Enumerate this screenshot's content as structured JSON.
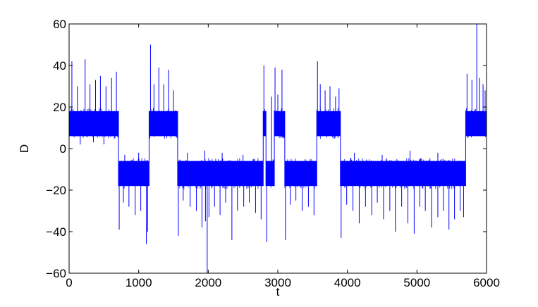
{
  "chart_data": {
    "type": "line",
    "title": "",
    "xlabel": "t",
    "ylabel": "D",
    "xlim": [
      0,
      6000
    ],
    "ylim": [
      -60,
      60
    ],
    "xticks": [
      0,
      1000,
      2000,
      3000,
      4000,
      5000,
      6000
    ],
    "xtick_labels": [
      "0",
      "1000",
      "2000",
      "3000",
      "4000",
      "5000",
      "6000"
    ],
    "yticks": [
      -60,
      -40,
      -20,
      0,
      20,
      40,
      60
    ],
    "ytick_labels": [
      "−60",
      "−40",
      "−20",
      "0",
      "20",
      "40",
      "60"
    ],
    "grid": false,
    "color": "#0000ff",
    "series": [
      {
        "segments": [
          {
            "t_start": 0,
            "t_end": 710,
            "band": [
              6,
              18
            ]
          },
          {
            "t_start": 710,
            "t_end": 1150,
            "band": [
              -18,
              -6
            ]
          },
          {
            "t_start": 1150,
            "t_end": 1560,
            "band": [
              6,
              18
            ]
          },
          {
            "t_start": 1560,
            "t_end": 2790,
            "band": [
              -18,
              -6
            ]
          },
          {
            "t_start": 2790,
            "t_end": 2830,
            "band": [
              6,
              18
            ]
          },
          {
            "t_start": 2830,
            "t_end": 2950,
            "band": [
              -18,
              -6
            ]
          },
          {
            "t_start": 2950,
            "t_end": 3100,
            "band": [
              6,
              18
            ]
          },
          {
            "t_start": 3100,
            "t_end": 3560,
            "band": [
              -18,
              -6
            ]
          },
          {
            "t_start": 3560,
            "t_end": 3900,
            "band": [
              6,
              18
            ]
          },
          {
            "t_start": 3900,
            "t_end": 5700,
            "band": [
              -18,
              -6
            ]
          },
          {
            "t_start": 5700,
            "t_end": 6000,
            "band": [
              6,
              18
            ]
          }
        ],
        "spikes": [
          [
            40,
            42
          ],
          [
            120,
            30
          ],
          [
            230,
            43
          ],
          [
            300,
            31
          ],
          [
            380,
            33
          ],
          [
            450,
            35
          ],
          [
            530,
            30
          ],
          [
            610,
            34
          ],
          [
            680,
            37
          ],
          [
            160,
            2
          ],
          [
            350,
            3
          ],
          [
            500,
            2
          ],
          [
            720,
            -39
          ],
          [
            780,
            -26
          ],
          [
            860,
            -28
          ],
          [
            950,
            -32
          ],
          [
            1030,
            -30
          ],
          [
            1110,
            -46
          ],
          [
            1130,
            -40
          ],
          [
            800,
            -3
          ],
          [
            1000,
            -2
          ],
          [
            1170,
            50
          ],
          [
            1220,
            31
          ],
          [
            1290,
            39
          ],
          [
            1360,
            31
          ],
          [
            1430,
            38
          ],
          [
            1500,
            28
          ],
          [
            1570,
            -42
          ],
          [
            1640,
            -25
          ],
          [
            1740,
            -28
          ],
          [
            1830,
            -30
          ],
          [
            1910,
            -38
          ],
          [
            1960,
            -35
          ],
          [
            1985,
            -60
          ],
          [
            2010,
            -33
          ],
          [
            2090,
            -28
          ],
          [
            2170,
            -32
          ],
          [
            2250,
            -26
          ],
          [
            2340,
            -44
          ],
          [
            2420,
            -30
          ],
          [
            2510,
            -28
          ],
          [
            2590,
            -26
          ],
          [
            2680,
            -31
          ],
          [
            2760,
            -34
          ],
          [
            1700,
            -2
          ],
          [
            1950,
            -1
          ],
          [
            2200,
            -2
          ],
          [
            2500,
            -3
          ],
          [
            2800,
            40
          ],
          [
            2840,
            -45
          ],
          [
            2910,
            25
          ],
          [
            2960,
            39
          ],
          [
            3000,
            26
          ],
          [
            3060,
            38
          ],
          [
            3110,
            -44
          ],
          [
            3180,
            -27
          ],
          [
            3260,
            -25
          ],
          [
            3350,
            -30
          ],
          [
            3440,
            -28
          ],
          [
            3520,
            -32
          ],
          [
            3570,
            42
          ],
          [
            3610,
            31
          ],
          [
            3680,
            28
          ],
          [
            3750,
            30
          ],
          [
            3830,
            25
          ],
          [
            3880,
            29
          ],
          [
            3910,
            -43
          ],
          [
            3990,
            -27
          ],
          [
            4080,
            -30
          ],
          [
            4170,
            -36
          ],
          [
            4260,
            -28
          ],
          [
            4350,
            -32
          ],
          [
            4430,
            -26
          ],
          [
            4520,
            -34
          ],
          [
            4610,
            -30
          ],
          [
            4690,
            -40
          ],
          [
            4780,
            -28
          ],
          [
            4870,
            -36
          ],
          [
            4960,
            -41
          ],
          [
            5040,
            -28
          ],
          [
            5120,
            -30
          ],
          [
            5210,
            -38
          ],
          [
            5300,
            -33
          ],
          [
            5380,
            -30
          ],
          [
            5460,
            -39
          ],
          [
            5540,
            -34
          ],
          [
            5620,
            -30
          ],
          [
            5670,
            -33
          ],
          [
            4100,
            -2
          ],
          [
            4500,
            -3
          ],
          [
            4900,
            -1
          ],
          [
            5300,
            -2
          ],
          [
            5720,
            36
          ],
          [
            5790,
            33
          ],
          [
            5860,
            60
          ],
          [
            5900,
            34
          ],
          [
            5950,
            31
          ],
          [
            5980,
            28
          ]
        ]
      }
    ]
  }
}
